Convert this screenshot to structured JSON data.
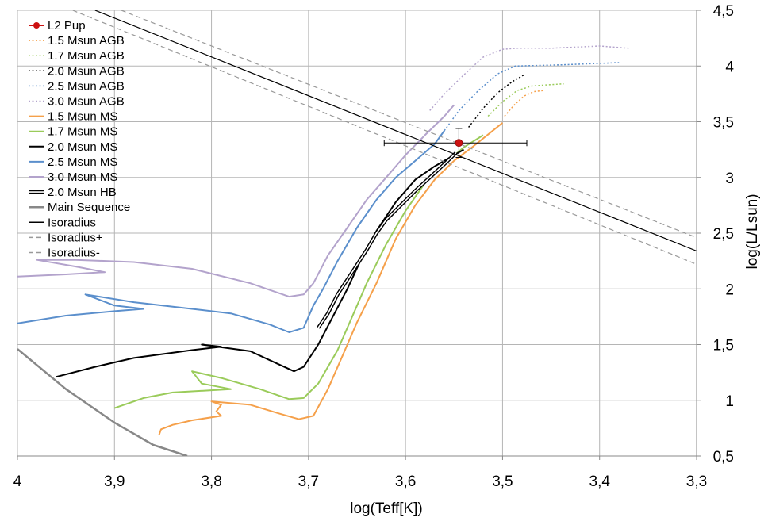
{
  "chart_data": {
    "type": "line",
    "xlabel": "log(Teff[K])",
    "ylabel": "log(L/Lsun)",
    "xlim": [
      4.0,
      3.3
    ],
    "ylim": [
      0.5,
      4.5
    ],
    "x_reversed": true,
    "x_ticks": [
      4.0,
      3.9,
      3.8,
      3.7,
      3.6,
      3.5,
      3.4,
      3.3
    ],
    "x_tick_labels": [
      "4",
      "3,9",
      "3,8",
      "3,7",
      "3,6",
      "3,5",
      "3,4",
      "3,3"
    ],
    "y_ticks": [
      0.5,
      1.0,
      1.5,
      2.0,
      2.5,
      3.0,
      3.5,
      4.0,
      4.5
    ],
    "y_tick_labels": [
      "0,5",
      "1",
      "1,5",
      "2",
      "2,5",
      "3",
      "3,5",
      "4",
      "4,5"
    ],
    "grid": true,
    "legend_position": "top-left",
    "point": {
      "name": "L2 Pup",
      "color": "#cc1111",
      "x": 3.545,
      "y": 3.31,
      "x_err": [
        3.475,
        3.622
      ],
      "y_err": [
        3.18,
        3.44
      ]
    },
    "series": [
      {
        "name": "1.5 Msun AGB",
        "color": "#f5a04a",
        "style": "dotted",
        "width": 1.5,
        "x": [
          3.498,
          3.488,
          3.478,
          3.468,
          3.458
        ],
        "y": [
          3.55,
          3.65,
          3.73,
          3.77,
          3.78
        ]
      },
      {
        "name": "1.7 Msun AGB",
        "color": "#9acb5a",
        "style": "dotted",
        "width": 1.5,
        "x": [
          3.515,
          3.5,
          3.485,
          3.47,
          3.455,
          3.437
        ],
        "y": [
          3.55,
          3.68,
          3.78,
          3.82,
          3.83,
          3.84
        ]
      },
      {
        "name": "2.0 Msun AGB",
        "color": "#000000",
        "style": "dotted",
        "width": 1.5,
        "x": [
          3.535,
          3.52,
          3.505,
          3.49,
          3.478
        ],
        "y": [
          3.45,
          3.62,
          3.76,
          3.86,
          3.92
        ]
      },
      {
        "name": "2.5 Msun AGB",
        "color": "#5b8fcc",
        "style": "dotted",
        "width": 1.5,
        "x": [
          3.56,
          3.545,
          3.525,
          3.505,
          3.487,
          3.44,
          3.38
        ],
        "y": [
          3.42,
          3.6,
          3.78,
          3.93,
          4.0,
          4.01,
          4.03
        ]
      },
      {
        "name": "3.0 Msun AGB",
        "color": "#b3a3cc",
        "style": "dotted",
        "width": 1.5,
        "x": [
          3.575,
          3.56,
          3.54,
          3.52,
          3.5,
          3.485,
          3.45,
          3.4,
          3.37
        ],
        "y": [
          3.6,
          3.75,
          3.92,
          4.08,
          4.15,
          4.16,
          4.16,
          4.18,
          4.16
        ]
      },
      {
        "name": "1.5 Msun MS",
        "color": "#f5a04a",
        "style": "solid",
        "width": 2,
        "x": [
          3.854,
          3.852,
          3.84,
          3.82,
          3.79,
          3.795,
          3.79,
          3.8,
          3.76,
          3.73,
          3.71,
          3.695,
          3.68,
          3.665,
          3.65,
          3.63,
          3.61,
          3.59,
          3.57,
          3.55,
          3.53,
          3.51,
          3.5
        ],
        "y": [
          0.69,
          0.74,
          0.78,
          0.82,
          0.86,
          0.9,
          0.96,
          0.99,
          0.96,
          0.88,
          0.83,
          0.86,
          1.1,
          1.4,
          1.7,
          2.05,
          2.45,
          2.75,
          2.98,
          3.15,
          3.28,
          3.42,
          3.49
        ]
      },
      {
        "name": "1.7 Msun MS",
        "color": "#9acb5a",
        "style": "solid",
        "width": 2,
        "x": [
          3.9,
          3.87,
          3.84,
          3.8,
          3.78,
          3.81,
          3.82,
          3.79,
          3.75,
          3.72,
          3.705,
          3.69,
          3.67,
          3.655,
          3.64,
          3.62,
          3.6,
          3.58,
          3.56,
          3.54,
          3.52
        ],
        "y": [
          0.93,
          1.02,
          1.07,
          1.09,
          1.1,
          1.15,
          1.26,
          1.2,
          1.1,
          1.01,
          1.02,
          1.15,
          1.45,
          1.75,
          2.05,
          2.4,
          2.7,
          2.95,
          3.12,
          3.27,
          3.38
        ]
      },
      {
        "name": "2.0 Msun MS",
        "color": "#000000",
        "style": "solid",
        "width": 2,
        "x": [
          3.96,
          3.92,
          3.88,
          3.82,
          3.79,
          3.81,
          3.76,
          3.73,
          3.715,
          3.705,
          3.69,
          3.675,
          3.66,
          3.645,
          3.63,
          3.61,
          3.59,
          3.57,
          3.55,
          3.54
        ],
        "y": [
          1.21,
          1.3,
          1.38,
          1.45,
          1.48,
          1.5,
          1.44,
          1.32,
          1.26,
          1.3,
          1.5,
          1.75,
          2.0,
          2.28,
          2.52,
          2.78,
          2.98,
          3.1,
          3.2,
          3.25
        ]
      },
      {
        "name": "2.5 Msun MS",
        "color": "#5b8fcc",
        "style": "solid",
        "width": 2,
        "x": [
          4.0,
          3.95,
          3.9,
          3.87,
          3.9,
          3.93,
          3.88,
          3.83,
          3.78,
          3.74,
          3.72,
          3.705,
          3.695,
          3.685,
          3.67,
          3.65,
          3.63,
          3.61,
          3.59,
          3.57,
          3.56
        ],
        "y": [
          1.69,
          1.76,
          1.8,
          1.82,
          1.85,
          1.95,
          1.88,
          1.83,
          1.78,
          1.68,
          1.61,
          1.65,
          1.85,
          2.0,
          2.25,
          2.55,
          2.8,
          3.0,
          3.15,
          3.3,
          3.42
        ]
      },
      {
        "name": "3.0 Msun MS",
        "color": "#b3a3cc",
        "style": "solid",
        "width": 2,
        "x": [
          4.0,
          3.95,
          3.91,
          3.94,
          3.98,
          3.94,
          3.88,
          3.82,
          3.76,
          3.72,
          3.705,
          3.695,
          3.68,
          3.66,
          3.64,
          3.62,
          3.6,
          3.58,
          3.56,
          3.55
        ],
        "y": [
          2.11,
          2.13,
          2.15,
          2.2,
          2.26,
          2.26,
          2.24,
          2.18,
          2.05,
          1.93,
          1.95,
          2.05,
          2.3,
          2.55,
          2.8,
          3.0,
          3.2,
          3.38,
          3.55,
          3.65
        ]
      },
      {
        "name": "2.0 Msun HB",
        "color": "#000000",
        "style": "double",
        "width": 1.5,
        "x": [
          3.69,
          3.68,
          3.67,
          3.655,
          3.64,
          3.63,
          3.62,
          3.605,
          3.59,
          3.575,
          3.56,
          3.548
        ],
        "y": [
          1.65,
          1.78,
          1.95,
          2.15,
          2.35,
          2.5,
          2.62,
          2.75,
          2.88,
          3.0,
          3.12,
          3.22
        ]
      },
      {
        "name": "Main Sequence",
        "color": "#888888",
        "style": "solid",
        "width": 2.5,
        "x": [
          4.0,
          3.95,
          3.9,
          3.86,
          3.825
        ],
        "y": [
          1.46,
          1.1,
          0.8,
          0.6,
          0.5
        ]
      },
      {
        "name": "Isoradius",
        "color": "#000000",
        "style": "solid",
        "width": 1.2,
        "x": [
          3.92,
          3.3
        ],
        "y": [
          4.5,
          2.34
        ]
      },
      {
        "name": "Isoradius+",
        "color": "#999999",
        "style": "dashed",
        "width": 1.2,
        "x": [
          3.893,
          3.3
        ],
        "y": [
          4.5,
          2.46
        ]
      },
      {
        "name": "Isoradius-",
        "color": "#999999",
        "style": "dashed",
        "width": 1.2,
        "x": [
          3.943,
          3.3
        ],
        "y": [
          4.5,
          2.22
        ]
      }
    ]
  }
}
